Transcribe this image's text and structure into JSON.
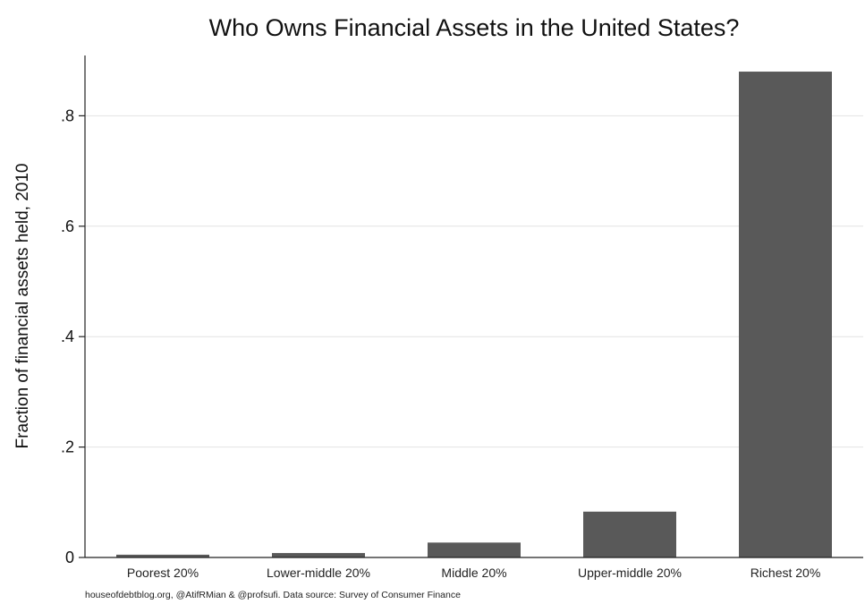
{
  "chart_data": {
    "type": "bar",
    "title": "Who Owns Financial Assets in the United States?",
    "xlabel": "",
    "ylabel": "Fraction of financial assets held, 2010",
    "categories": [
      "Poorest 20%",
      "Lower-middle 20%",
      "Middle 20%",
      "Upper-middle 20%",
      "Richest 20%"
    ],
    "values": [
      0.005,
      0.008,
      0.027,
      0.083,
      0.88
    ],
    "ylim": [
      0,
      0.9
    ],
    "yticks": [
      0,
      0.2,
      0.4,
      0.6,
      0.8
    ],
    "ytick_labels": [
      "0",
      ".2",
      ".4",
      ".6",
      ".8"
    ],
    "grid": true,
    "bar_color": "#595959",
    "note": "houseofdebtblog.org, @AtifRMian & @profsufi. Data source: Survey of Consumer Finance"
  }
}
